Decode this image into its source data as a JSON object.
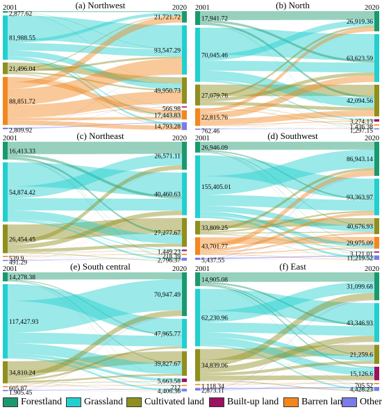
{
  "categories": [
    "Forestland",
    "Grassland",
    "Cultivated land",
    "Built-up land",
    "Barren land",
    "Other"
  ],
  "colors": {
    "Forestland": "#199a6e",
    "Grassland": "#22cfcf",
    "Cultivated land": "#8f8f1e",
    "Built-up land": "#9b1260",
    "Barren land": "#f2871f",
    "Other": "#7b7bea"
  },
  "chart_data": [
    {
      "type": "sankey",
      "title": "(a) Northwest",
      "left_year": "2001",
      "right_year": "2020",
      "left": [
        {
          "category": "Forestland",
          "value": 2877.62,
          "label": "2,877.62"
        },
        {
          "category": "Grassland",
          "value": 81988.55,
          "label": "81,988.55"
        },
        {
          "category": "Cultivated land",
          "value": 21496.04,
          "label": "21,496.04"
        },
        {
          "category": "Built-up land",
          "value": 0,
          "label": ""
        },
        {
          "category": "Barren land",
          "value": 88851.72,
          "label": "88,851.72"
        },
        {
          "category": "Other",
          "value": 2809.92,
          "label": "2,809.92"
        }
      ],
      "right": [
        {
          "category": "Forestland",
          "value": 21721.72,
          "label": "21,721.72"
        },
        {
          "category": "Grassland",
          "value": 93547.29,
          "label": "93,547.29"
        },
        {
          "category": "Cultivated land",
          "value": 49950.73,
          "label": "49,950.73"
        },
        {
          "category": "Built-up land",
          "value": 566.98,
          "label": "566.98"
        },
        {
          "category": "Barren land",
          "value": 17443.83,
          "label": "17,443.83"
        },
        {
          "category": "Other",
          "value": 14793.28,
          "label": "14,793.28"
        }
      ]
    },
    {
      "type": "sankey",
      "title": "(b) North",
      "left_year": "2001",
      "right_year": "2020",
      "left": [
        {
          "category": "Forestland",
          "value": 17941.72,
          "label": "17,941.72"
        },
        {
          "category": "Grassland",
          "value": 70045.46,
          "label": "70,045.46"
        },
        {
          "category": "Cultivated land",
          "value": 27079.76,
          "label": "27,079.76"
        },
        {
          "category": "Built-up land",
          "value": 0,
          "label": ""
        },
        {
          "category": "Barren land",
          "value": 22815.76,
          "label": "22,815.76"
        },
        {
          "category": "Other",
          "value": 762.46,
          "label": "762.46"
        }
      ],
      "right": [
        {
          "category": "Forestland",
          "value": 26919.36,
          "label": "26,919.36"
        },
        {
          "category": "Grassland",
          "value": 63623.59,
          "label": "63,623.59"
        },
        {
          "category": "Cultivated land",
          "value": 42094.56,
          "label": "42,094.56"
        },
        {
          "category": "Built-up land",
          "value": 3274.13,
          "label": "3,274.13"
        },
        {
          "category": "Barren land",
          "value": 1436.38,
          "label": "1,436.38"
        },
        {
          "category": "Other",
          "value": 1297.15,
          "label": "1,297.15"
        }
      ]
    },
    {
      "type": "sankey",
      "title": "(c) Northeast",
      "left_year": "2001",
      "right_year": "2020",
      "left": [
        {
          "category": "Forestland",
          "value": 16413.33,
          "label": "16,413.33"
        },
        {
          "category": "Grassland",
          "value": 54874.42,
          "label": "54,874.42"
        },
        {
          "category": "Cultivated land",
          "value": 26454.45,
          "label": "26,454.45"
        },
        {
          "category": "Built-up land",
          "value": 0,
          "label": ""
        },
        {
          "category": "Barren land",
          "value": 539.9,
          "label": "539.9"
        },
        {
          "category": "Other",
          "value": 491.29,
          "label": "491.29"
        }
      ],
      "right": [
        {
          "category": "Forestland",
          "value": 26571.11,
          "label": "26,571.11"
        },
        {
          "category": "Grassland",
          "value": 40460.63,
          "label": "40,460.63"
        },
        {
          "category": "Cultivated land",
          "value": 27277.67,
          "label": "27,277.67"
        },
        {
          "category": "Built-up land",
          "value": 1449.23,
          "label": "1,449.23"
        },
        {
          "category": "Barren land",
          "value": 218.39,
          "label": "218.39"
        },
        {
          "category": "Other",
          "value": 2796.37,
          "label": "2,796.37"
        }
      ]
    },
    {
      "type": "sankey",
      "title": "(d) Southwest",
      "left_year": "2001",
      "right_year": "2020",
      "left": [
        {
          "category": "Forestland",
          "value": 26946.09,
          "label": "26,946.09"
        },
        {
          "category": "Grassland",
          "value": 155405.01,
          "label": "155,405.01"
        },
        {
          "category": "Cultivated land",
          "value": 33809.25,
          "label": "33,809.25"
        },
        {
          "category": "Built-up land",
          "value": 0,
          "label": ""
        },
        {
          "category": "Barren land",
          "value": 43701.77,
          "label": "43,701.77"
        },
        {
          "category": "Other",
          "value": 5437.55,
          "label": "5,437.55"
        }
      ],
      "right": [
        {
          "category": "Forestland",
          "value": 86943.14,
          "label": "86,943.14"
        },
        {
          "category": "Grassland",
          "value": 93363.97,
          "label": "93,363.97"
        },
        {
          "category": "Cultivated land",
          "value": 40676.93,
          "label": "40,676.93"
        },
        {
          "category": "Barren land",
          "value": 29975.09,
          "label": "29,975.09"
        },
        {
          "category": "Built-up land",
          "value": 3121.01,
          "label": "3,121.01"
        },
        {
          "category": "Other",
          "value": 11219.52,
          "label": "11,219.52"
        }
      ]
    },
    {
      "type": "sankey",
      "title": "(e) South central",
      "left_year": "2001",
      "right_year": "2020",
      "left": [
        {
          "category": "Forestland",
          "value": 14278.38,
          "label": "14,278.38"
        },
        {
          "category": "Grassland",
          "value": 117427.93,
          "label": "117,427.93"
        },
        {
          "category": "Cultivated land",
          "value": 34810.24,
          "label": "34,810.24"
        },
        {
          "category": "Built-up land",
          "value": 0,
          "label": ""
        },
        {
          "category": "Barren land",
          "value": 605.87,
          "label": "605.87"
        },
        {
          "category": "Other",
          "value": 1905.45,
          "label": "1,905.45"
        }
      ],
      "right": [
        {
          "category": "Forestland",
          "value": 70947.49,
          "label": "70,947.49"
        },
        {
          "category": "Grassland",
          "value": 47965.77,
          "label": "47,965.77"
        },
        {
          "category": "Cultivated land",
          "value": 39827.67,
          "label": "39,827.67"
        },
        {
          "category": "Built-up land",
          "value": 5663.58,
          "label": "5,663.58"
        },
        {
          "category": "Barren land",
          "value": 212,
          "label": "212"
        },
        {
          "category": "Other",
          "value": 4406.36,
          "label": "4,406.36"
        }
      ]
    },
    {
      "type": "sankey",
      "title": "(f) East",
      "left_year": "2001",
      "right_year": "2020",
      "left": [
        {
          "category": "Forestland",
          "value": 14905.08,
          "label": "14,905.08"
        },
        {
          "category": "Grassland",
          "value": 62230.96,
          "label": "62,230.96"
        },
        {
          "category": "Cultivated land",
          "value": 34839.06,
          "label": "34,839.06"
        },
        {
          "category": "Built-up land",
          "value": 0,
          "label": ""
        },
        {
          "category": "Barren land",
          "value": 1118.34,
          "label": "1,118.34"
        },
        {
          "category": "Other",
          "value": 2873.11,
          "label": "2,873.11"
        }
      ],
      "right": [
        {
          "category": "Forestland",
          "value": 31099.68,
          "label": "31,099.68"
        },
        {
          "category": "Grassland",
          "value": 43346.93,
          "label": "43,346.93"
        },
        {
          "category": "Cultivated land",
          "value": 21259.6,
          "label": "21,259.6"
        },
        {
          "category": "Built-up land",
          "value": 15126.6,
          "label": "15,126.6"
        },
        {
          "category": "Barren land",
          "value": 705.52,
          "label": "705.52"
        },
        {
          "category": "Other",
          "value": 4428.23,
          "label": "4,428.23"
        }
      ]
    }
  ]
}
